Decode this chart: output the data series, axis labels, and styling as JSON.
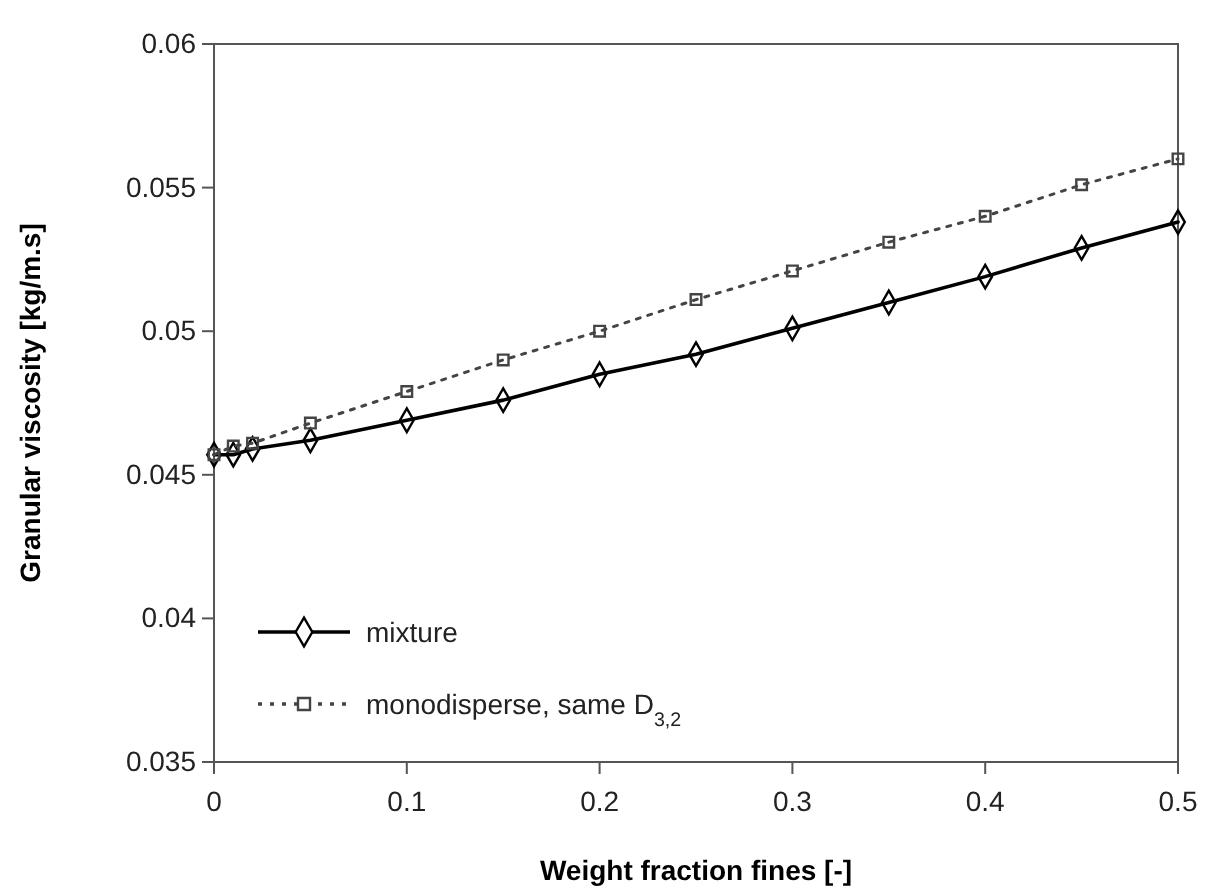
{
  "chart_data": {
    "type": "line",
    "xlabel": "Weight fraction fines [-]",
    "ylabel": "Granular viscosity [kg/m.s]",
    "x": [
      0,
      0.01,
      0.02,
      0.05,
      0.1,
      0.15,
      0.2,
      0.25,
      0.3,
      0.35,
      0.4,
      0.45,
      0.5
    ],
    "series": [
      {
        "name": "mixture",
        "color": "#000000",
        "marker": "diamond",
        "line_style": "solid",
        "values": [
          0.0457,
          0.0457,
          0.0459,
          0.0462,
          0.0469,
          0.0476,
          0.0485,
          0.0492,
          0.0501,
          0.051,
          0.0519,
          0.0529,
          0.0538
        ]
      },
      {
        "name": "monodisperse, same D$_{3,2}$",
        "color": "#444444",
        "marker": "square",
        "line_style": "dotted",
        "values": [
          0.0457,
          0.046,
          0.0461,
          0.0468,
          0.0479,
          0.049,
          0.05,
          0.0511,
          0.0521,
          0.0531,
          0.054,
          0.0551,
          0.056
        ]
      }
    ],
    "xlim": [
      0,
      0.5
    ],
    "xticks": [
      0,
      0.1,
      0.2,
      0.3,
      0.4,
      0.5
    ],
    "ylim": [
      0.035,
      0.06
    ],
    "yticks": [
      0.035,
      0.04,
      0.045,
      0.05,
      0.055,
      0.06
    ],
    "grid": false,
    "legend": "bottom left"
  }
}
